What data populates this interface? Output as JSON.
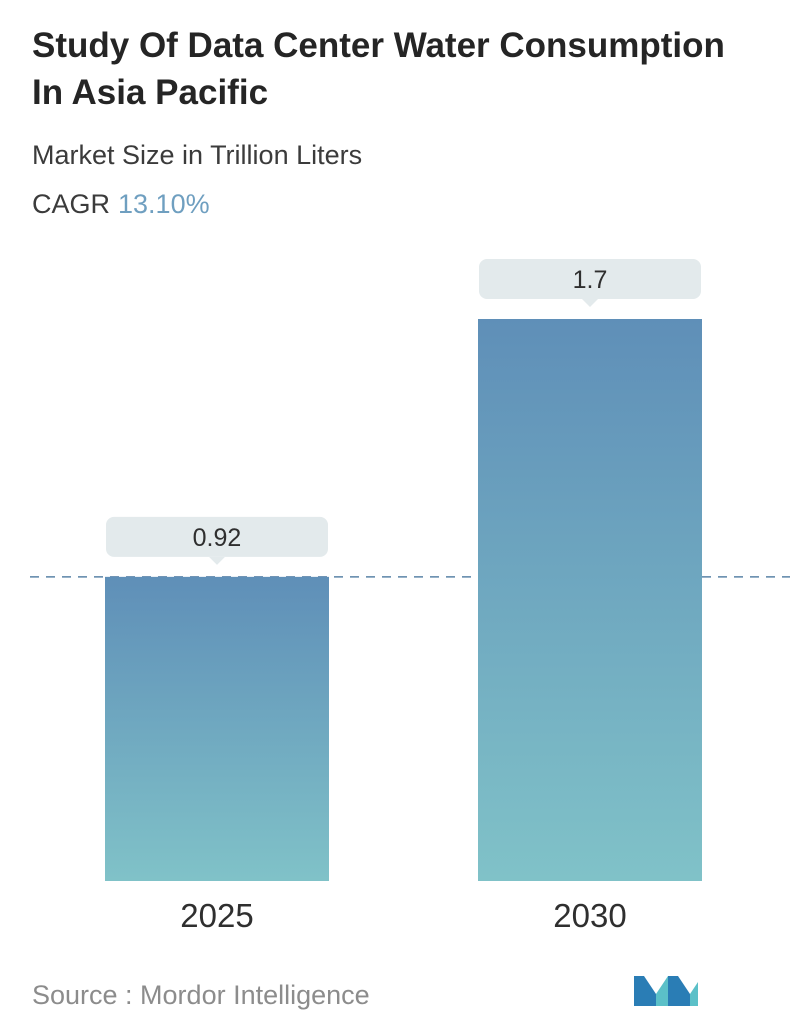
{
  "title": "Study Of Data Center Water Consumption In Asia Pacific",
  "subtitle": "Market Size in Trillion Liters",
  "cagr": {
    "label": "CAGR",
    "value": "13.10%"
  },
  "chart_data": {
    "type": "bar",
    "categories": [
      "2025",
      "2030"
    ],
    "values": [
      0.92,
      1.7
    ],
    "value_labels": [
      "0.92",
      "1.7"
    ],
    "title": "Study Of Data Center Water Consumption In Asia Pacific",
    "ylabel": "Market Size in Trillion Liters",
    "reference_line": {
      "value": 0.92,
      "style": "dashed"
    },
    "grid": false,
    "legend": "none",
    "colors": {
      "bar_top": "#5f8fb8",
      "bar_bottom": "#80c2c8",
      "label_box": "#e3eaec",
      "reference_line": "#5b84a8"
    }
  },
  "source": "Source :  Mordor Intelligence",
  "logo": {
    "icon": "mordor-intelligence-logo",
    "colors": [
      "#2a7db5",
      "#5bc0c8"
    ]
  }
}
